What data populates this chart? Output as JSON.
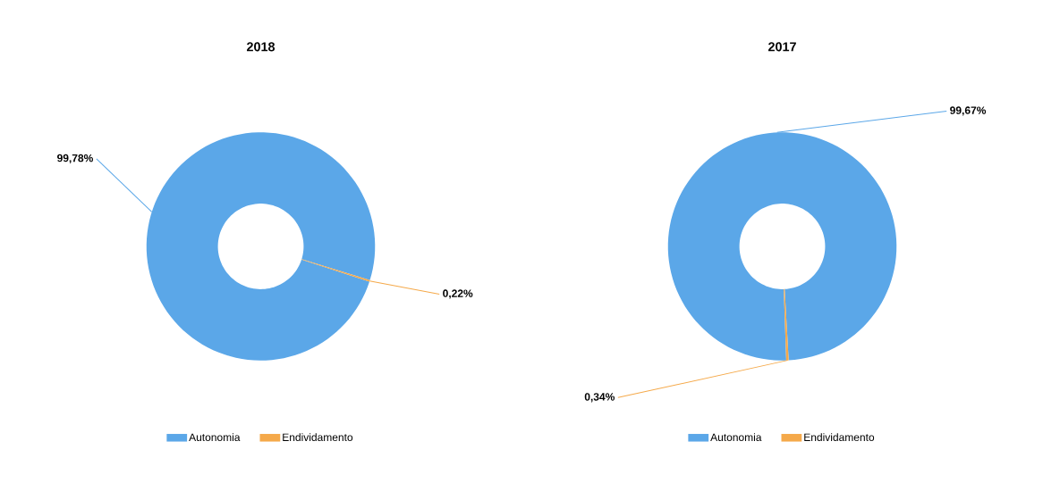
{
  "chart_data": [
    {
      "type": "donut",
      "title": "2018",
      "categories": [
        "Autonomia",
        "Endividamento"
      ],
      "values": [
        99.78,
        0.22
      ],
      "colors": [
        "#5ba7e8",
        "#f5a94a"
      ],
      "value_labels": [
        "99,78%",
        "0,22%"
      ],
      "legend": "bottom"
    },
    {
      "type": "donut",
      "title": "2017",
      "categories": [
        "Autonomia",
        "Endividamento"
      ],
      "values": [
        99.67,
        0.34
      ],
      "colors": [
        "#5ba7e8",
        "#f5a94a"
      ],
      "value_labels": [
        "99,67%",
        "0,34%"
      ],
      "legend": "bottom"
    }
  ]
}
